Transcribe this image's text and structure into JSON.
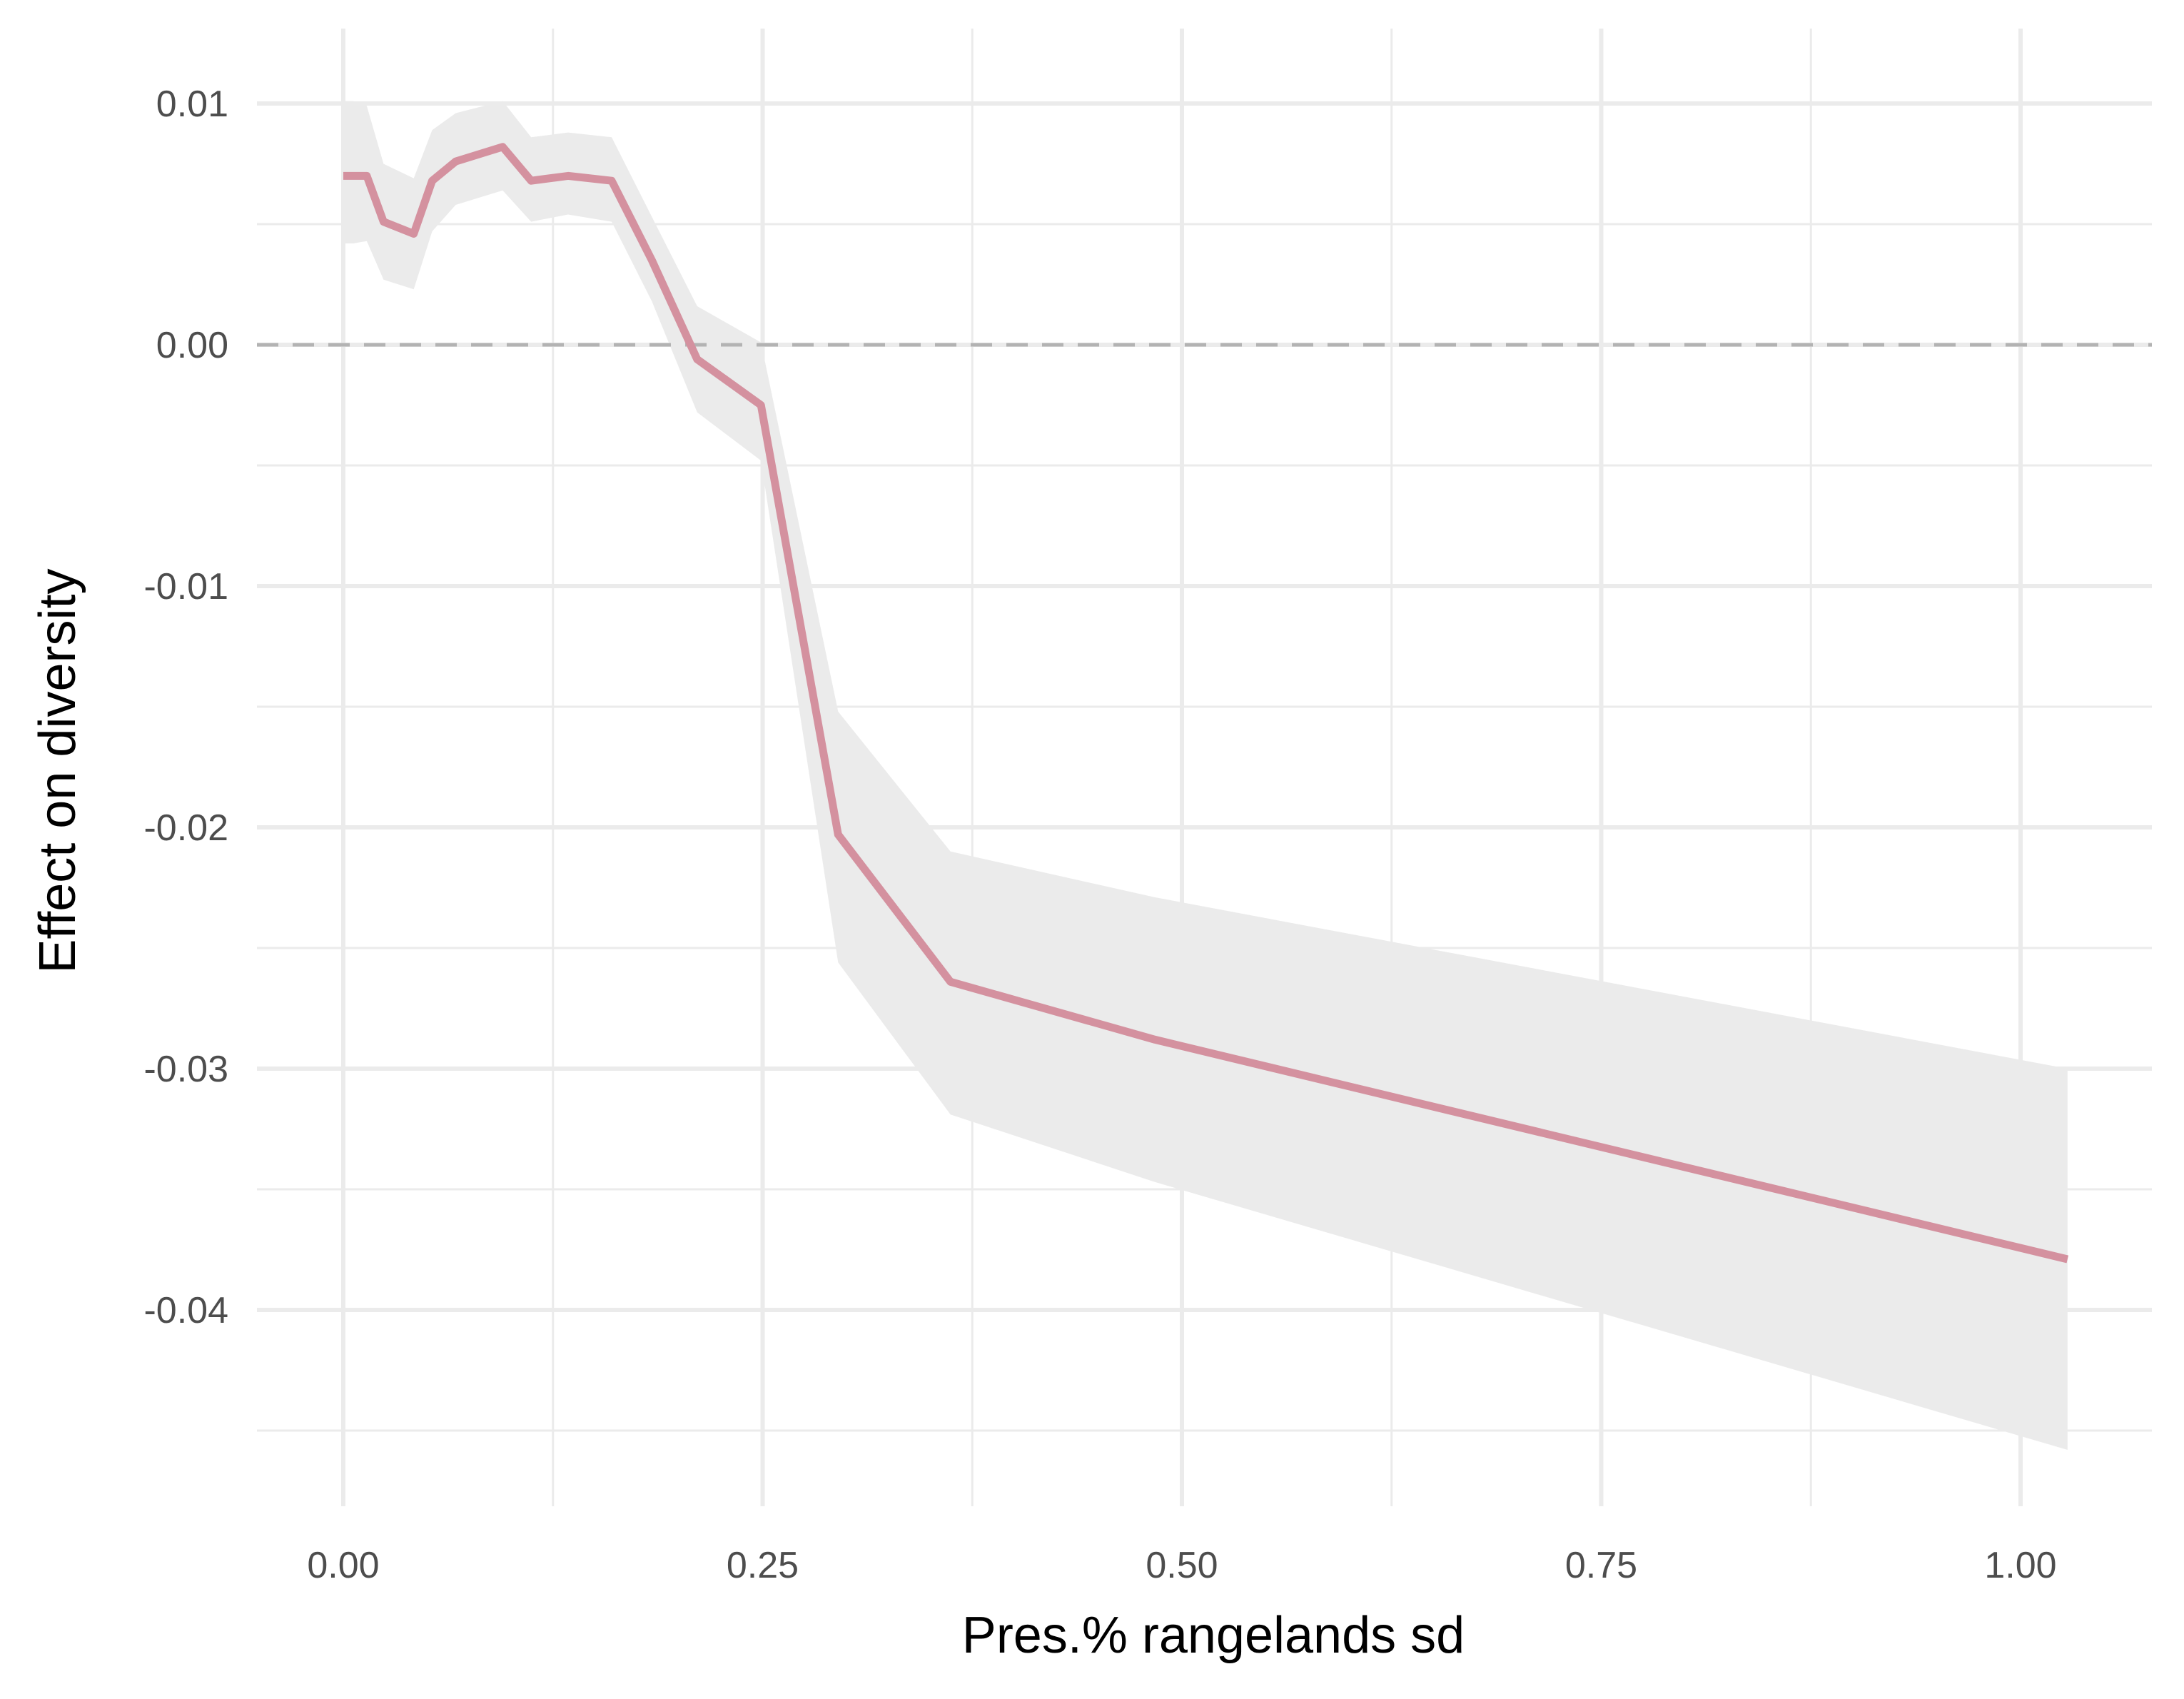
{
  "chart_data": {
    "type": "line",
    "title": "",
    "xlabel": "Pres.% rangelands sd",
    "ylabel": "Effect on diversity",
    "xlim": [
      -0.05,
      1.08
    ],
    "ylim": [
      -0.0472,
      0.0128
    ],
    "x_ticks": [
      0.0,
      0.25,
      0.5,
      0.75,
      1.0
    ],
    "x_tick_labels": [
      "0.00",
      "0.25",
      "0.50",
      "0.75",
      "1.00"
    ],
    "y_ticks": [
      0.01,
      0.0,
      -0.01,
      -0.02,
      -0.03,
      -0.04
    ],
    "y_tick_labels": [
      "0.01",
      "0.00",
      "-0.01",
      "-0.02",
      "-0.03",
      "-0.04"
    ],
    "grid": true,
    "reference_line": {
      "y": 0.0,
      "style": "dashed",
      "color": "#b3b3b3"
    },
    "series": [
      {
        "color": "#d4919f",
        "x": [
          0.0,
          0.006,
          0.014,
          0.024,
          0.042,
          0.053,
          0.067,
          0.095,
          0.112,
          0.134,
          0.16,
          0.184,
          0.211,
          0.249,
          0.295,
          0.362,
          0.484,
          1.028
        ],
        "y": [
          0.007,
          0.007,
          0.007,
          0.0051,
          0.0046,
          0.0068,
          0.0076,
          0.0082,
          0.0068,
          0.007,
          0.0068,
          0.0035,
          -0.0006,
          -0.0025,
          -0.0203,
          -0.0264,
          -0.0288,
          -0.0379
        ],
        "ci_upper": [
          0.0101,
          0.0101,
          0.0099,
          0.0075,
          0.0069,
          0.0089,
          0.0096,
          0.0101,
          0.0086,
          0.0088,
          0.0086,
          0.0053,
          0.0016,
          0.0001,
          -0.0152,
          -0.021,
          -0.0229,
          -0.03
        ],
        "ci_lower": [
          0.0042,
          0.0042,
          0.0043,
          0.0027,
          0.0023,
          0.0047,
          0.0058,
          0.0064,
          0.0051,
          0.0054,
          0.0051,
          0.0018,
          -0.0028,
          -0.0048,
          -0.0256,
          -0.0319,
          -0.0347,
          -0.0458
        ]
      }
    ],
    "ribbon_color": "#ebebeb"
  }
}
